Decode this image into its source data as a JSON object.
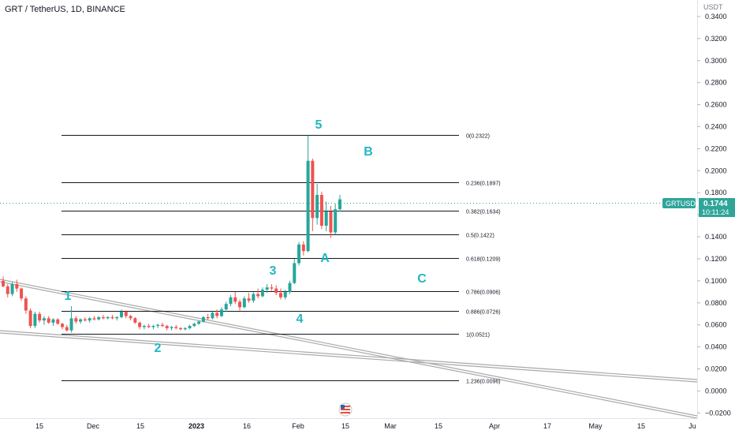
{
  "header": {
    "symbol_line": "GRT / TetherUS, 1D, BINANCE"
  },
  "price_axis": {
    "unit": "USDT",
    "ticks": [
      "0.3400",
      "0.3200",
      "0.3000",
      "0.2800",
      "0.2600",
      "0.2400",
      "0.2200",
      "0.2000",
      "0.1800",
      "0.1600",
      "0.1400",
      "0.1200",
      "0.1000",
      "0.0800",
      "0.0600",
      "0.0400",
      "0.0200",
      "0.0000",
      "−0.0200"
    ],
    "last_symbol": "GRTUSDT",
    "last_price": "0.1744",
    "countdown": "10:11:24"
  },
  "time_axis": {
    "ticks": [
      "15",
      "Dec",
      "15",
      "2023",
      "16",
      "Feb",
      "15",
      "Mar",
      "15",
      "Apr",
      "17",
      "May",
      "15",
      "Ju"
    ]
  },
  "colors": {
    "up": "#26a69a",
    "down": "#ef5350",
    "wave": "#22b5c3",
    "line": "#131722",
    "trend": "#a9a9a9",
    "tag": "#2fa59a",
    "axis": "#787b86"
  },
  "chart_data": {
    "type": "candlestick",
    "title": "GRT / TetherUS, 1D, BINANCE",
    "ylabel": "USDT",
    "ylim": [
      -0.0255,
      0.355
    ],
    "fib_levels": [
      {
        "label": "0(0.2322)",
        "value": 0.2322
      },
      {
        "label": "0.236(0.1897)",
        "value": 0.1897
      },
      {
        "label": "0.382(0.1634)",
        "value": 0.1634
      },
      {
        "label": "0.5(0.1422)",
        "value": 0.1422
      },
      {
        "label": "0.618(0.1209)",
        "value": 0.1209
      },
      {
        "label": "0.786(0.0906)",
        "value": 0.0906
      },
      {
        "label": "0.886(0.0726)",
        "value": 0.0726
      },
      {
        "label": "1(0.0521)",
        "value": 0.0521
      },
      {
        "label": "1.236(0.0096)",
        "value": 0.0096
      }
    ],
    "wave_labels": [
      "1",
      "2",
      "3",
      "4",
      "5",
      "A",
      "B",
      "C"
    ],
    "candles": [
      [
        0.1,
        0.104,
        0.094,
        0.095
      ],
      [
        0.095,
        0.097,
        0.085,
        0.088
      ],
      [
        0.088,
        0.099,
        0.086,
        0.097
      ],
      [
        0.097,
        0.101,
        0.09,
        0.093
      ],
      [
        0.093,
        0.094,
        0.082,
        0.084
      ],
      [
        0.084,
        0.086,
        0.07,
        0.073
      ],
      [
        0.073,
        0.075,
        0.057,
        0.059
      ],
      [
        0.059,
        0.072,
        0.057,
        0.07
      ],
      [
        0.07,
        0.072,
        0.062,
        0.064
      ],
      [
        0.064,
        0.068,
        0.06,
        0.066
      ],
      [
        0.066,
        0.068,
        0.061,
        0.062
      ],
      [
        0.062,
        0.066,
        0.059,
        0.065
      ],
      [
        0.065,
        0.066,
        0.06,
        0.061
      ],
      [
        0.061,
        0.062,
        0.056,
        0.058
      ],
      [
        0.058,
        0.06,
        0.054,
        0.055
      ],
      [
        0.055,
        0.077,
        0.053,
        0.066
      ],
      [
        0.066,
        0.068,
        0.061,
        0.063
      ],
      [
        0.063,
        0.066,
        0.061,
        0.065
      ],
      [
        0.065,
        0.067,
        0.063,
        0.064
      ],
      [
        0.064,
        0.067,
        0.062,
        0.066
      ],
      [
        0.066,
        0.068,
        0.064,
        0.065
      ],
      [
        0.065,
        0.068,
        0.064,
        0.067
      ],
      [
        0.067,
        0.069,
        0.065,
        0.066
      ],
      [
        0.066,
        0.068,
        0.065,
        0.067
      ],
      [
        0.067,
        0.069,
        0.065,
        0.066
      ],
      [
        0.066,
        0.068,
        0.064,
        0.067
      ],
      [
        0.067,
        0.074,
        0.066,
        0.072
      ],
      [
        0.072,
        0.073,
        0.066,
        0.068
      ],
      [
        0.068,
        0.069,
        0.064,
        0.066
      ],
      [
        0.066,
        0.067,
        0.061,
        0.062
      ],
      [
        0.062,
        0.063,
        0.056,
        0.058
      ],
      [
        0.058,
        0.06,
        0.056,
        0.059
      ],
      [
        0.059,
        0.061,
        0.057,
        0.058
      ],
      [
        0.058,
        0.06,
        0.056,
        0.059
      ],
      [
        0.059,
        0.061,
        0.057,
        0.06
      ],
      [
        0.06,
        0.062,
        0.058,
        0.059
      ],
      [
        0.059,
        0.06,
        0.055,
        0.057
      ],
      [
        0.057,
        0.059,
        0.055,
        0.058
      ],
      [
        0.058,
        0.06,
        0.056,
        0.057
      ],
      [
        0.057,
        0.058,
        0.055,
        0.056
      ],
      [
        0.056,
        0.058,
        0.055,
        0.057
      ],
      [
        0.057,
        0.06,
        0.056,
        0.059
      ],
      [
        0.059,
        0.062,
        0.058,
        0.061
      ],
      [
        0.061,
        0.064,
        0.06,
        0.063
      ],
      [
        0.063,
        0.068,
        0.062,
        0.067
      ],
      [
        0.067,
        0.07,
        0.064,
        0.066
      ],
      [
        0.066,
        0.072,
        0.065,
        0.071
      ],
      [
        0.071,
        0.074,
        0.066,
        0.068
      ],
      [
        0.068,
        0.076,
        0.067,
        0.074
      ],
      [
        0.074,
        0.081,
        0.072,
        0.079
      ],
      [
        0.079,
        0.087,
        0.077,
        0.085
      ],
      [
        0.085,
        0.09,
        0.079,
        0.081
      ],
      [
        0.081,
        0.083,
        0.073,
        0.076
      ],
      [
        0.076,
        0.086,
        0.075,
        0.084
      ],
      [
        0.084,
        0.089,
        0.08,
        0.082
      ],
      [
        0.082,
        0.09,
        0.08,
        0.088
      ],
      [
        0.088,
        0.093,
        0.084,
        0.086
      ],
      [
        0.086,
        0.094,
        0.085,
        0.092
      ],
      [
        0.092,
        0.097,
        0.089,
        0.094
      ],
      [
        0.094,
        0.097,
        0.091,
        0.093
      ],
      [
        0.093,
        0.096,
        0.087,
        0.089
      ],
      [
        0.089,
        0.093,
        0.083,
        0.085
      ],
      [
        0.085,
        0.092,
        0.083,
        0.09
      ],
      [
        0.09,
        0.1,
        0.088,
        0.098
      ],
      [
        0.098,
        0.12,
        0.097,
        0.116
      ],
      [
        0.116,
        0.135,
        0.114,
        0.133
      ],
      [
        0.133,
        0.136,
        0.123,
        0.127
      ],
      [
        0.127,
        0.232,
        0.126,
        0.209
      ],
      [
        0.209,
        0.211,
        0.145,
        0.157
      ],
      [
        0.157,
        0.188,
        0.151,
        0.178
      ],
      [
        0.178,
        0.181,
        0.147,
        0.15
      ],
      [
        0.15,
        0.172,
        0.145,
        0.163
      ],
      [
        0.163,
        0.168,
        0.139,
        0.144
      ],
      [
        0.144,
        0.17,
        0.142,
        0.165
      ],
      [
        0.165,
        0.178,
        0.163,
        0.174
      ]
    ]
  }
}
